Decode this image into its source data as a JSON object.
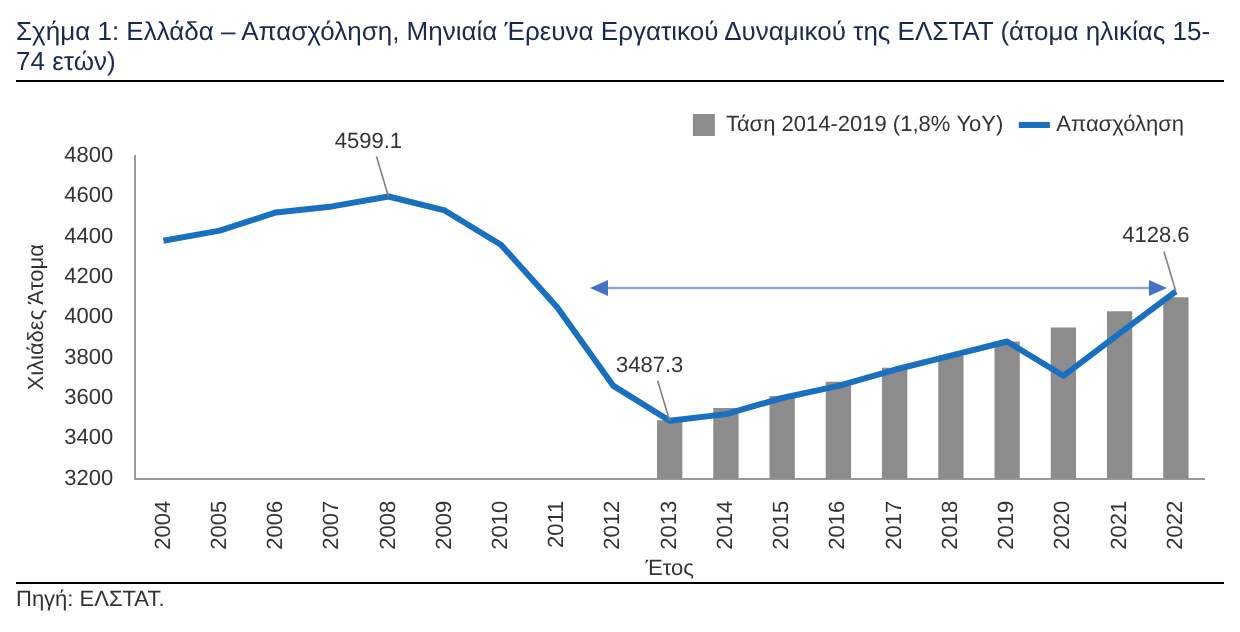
{
  "chart_data": {
    "type": "bar",
    "title": "Σχήμα 1: Ελλάδα – Απασχόληση, Μηνιαία Έρευνα Εργατικού Δυναμικού της ΕΛΣΤΑΤ (άτομα ηλικίας 15-74 ετών)",
    "xlabel": "Έτος",
    "ylabel": "Χιλιάδες Άτομα",
    "annotations": [
      "Πηγή: ΕΛΣΤΑΤ."
    ],
    "categories": [
      "2004",
      "2005",
      "2006",
      "2007",
      "2008",
      "2009",
      "2010",
      "2011",
      "2012",
      "2013",
      "2014",
      "2015",
      "2016",
      "2017",
      "2018",
      "2019",
      "2020",
      "2021",
      "2022"
    ],
    "series": [
      {
        "name": "Τάση 2014-2019 (1,8% YoY)",
        "color": "#8c8c8c",
        "values": [
          null,
          null,
          null,
          null,
          null,
          null,
          null,
          null,
          null,
          3490,
          3550,
          3610,
          3680,
          3750,
          3810,
          3880,
          3950,
          4030,
          4100
        ]
      },
      {
        "name": "Απασχόληση",
        "type": "line",
        "color": "#1a70c0",
        "values": [
          4380,
          4430,
          4520,
          4550,
          4599.1,
          4530,
          4360,
          4050,
          3660,
          3487.3,
          3520,
          3600,
          3660,
          3740,
          3810,
          3880,
          3710,
          3920,
          4128.6
        ],
        "value_labels": [
          null,
          null,
          null,
          null,
          "4599.1",
          null,
          null,
          null,
          null,
          "3487.3",
          null,
          null,
          null,
          null,
          null,
          null,
          null,
          null,
          "4128.6"
        ]
      }
    ],
    "ylim": [
      3200,
      4800
    ],
    "yticks": [
      3200,
      3400,
      3600,
      3800,
      4000,
      4200,
      4400,
      4600,
      4800
    ],
    "legend": "top right",
    "marker": "none"
  }
}
